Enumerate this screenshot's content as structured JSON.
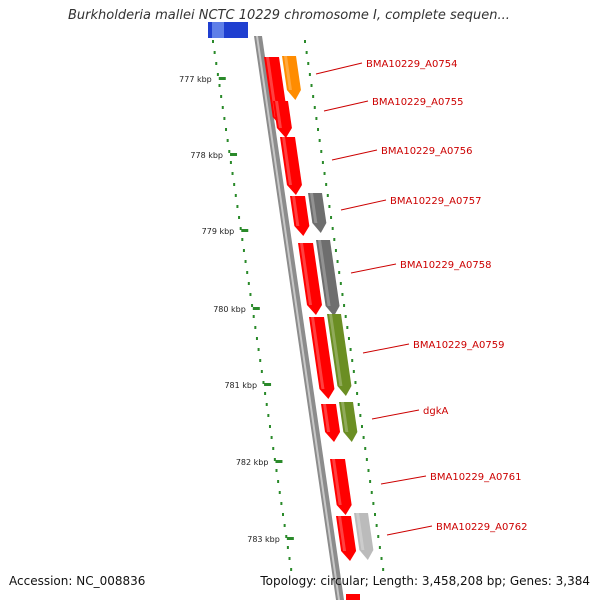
{
  "title": "Burkholderia mallei NCTC 10229 chromosome I, complete sequen...",
  "footer": {
    "accession": "Accession: NC_008836",
    "topology": "Topology: circular; Length: 3,458,208 bp; Genes: 3,384"
  },
  "ticks": [
    "777 kbp",
    "778 kbp",
    "779 kbp",
    "780 kbp",
    "781 kbp",
    "782 kbp",
    "783 kbp"
  ],
  "genes": [
    {
      "label": "BMA10229_A0754",
      "color": "#ff8c00"
    },
    {
      "label": "BMA10229_A0755",
      "color": "#ff0000"
    },
    {
      "label": "BMA10229_A0756",
      "color": "#ff0000"
    },
    {
      "label": "BMA10229_A0757",
      "color": "#6e6e6e"
    },
    {
      "label": "BMA10229_A0758",
      "color": "#6e6e6e"
    },
    {
      "label": "BMA10229_A0759",
      "color": "#6b8e23"
    },
    {
      "label": "dgkA",
      "color": "#6b8e23"
    },
    {
      "label": "BMA10229_A0761",
      "color": "#ff0000"
    },
    {
      "label": "BMA10229_A0762",
      "color": "#bbbbbb"
    }
  ],
  "colors": {
    "cds": "#ff0000",
    "gene_label": "#cc0000",
    "tick": "#2a8a2a",
    "backbone": "#8c8c8c",
    "top_feature": "#1f3fd0"
  }
}
